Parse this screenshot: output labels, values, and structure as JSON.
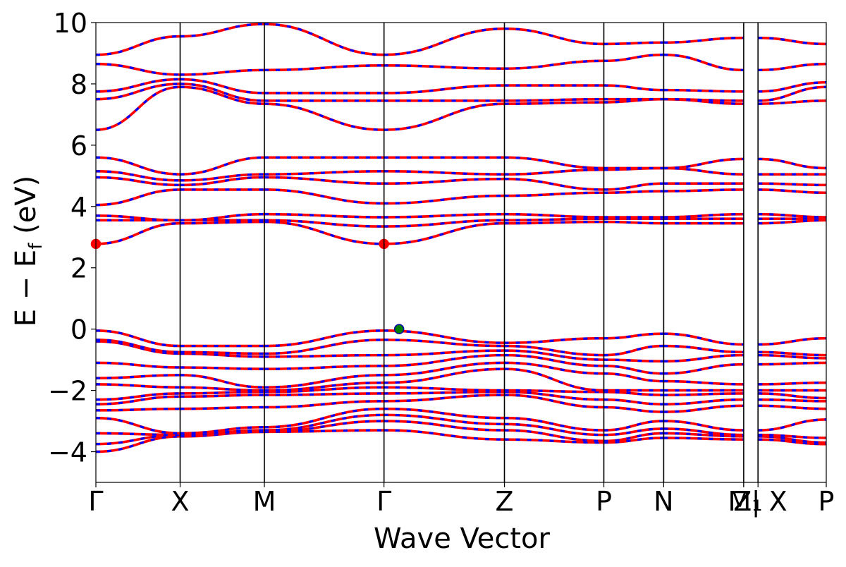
{
  "chart_data": {
    "type": "line",
    "title": "",
    "xlabel": "Wave Vector",
    "ylabel_main": "E − E",
    "ylabel_sub": "f",
    "ylabel_unit": " (eV)",
    "ylim": [
      -5,
      10
    ],
    "yticks": [
      10,
      8,
      6,
      4,
      2,
      0,
      -2,
      -4
    ],
    "ytick_labels": [
      "10",
      "8",
      "6",
      "4",
      "2",
      "0",
      "−2",
      "−4"
    ],
    "grid": false,
    "legend": "none",
    "colors": {
      "band_primary": "#ff0000",
      "band_secondary": "#0000ff",
      "cbm_marker": "#ff0000",
      "vbm_marker": "#008000",
      "axis": "#000000"
    },
    "kpoints": [
      {
        "label": "Γ",
        "x": 0.0
      },
      {
        "label": "X",
        "x": 1.0
      },
      {
        "label": "M",
        "x": 2.0
      },
      {
        "label": "Γ",
        "x": 3.42
      },
      {
        "label": "Z",
        "x": 4.85
      },
      {
        "label": "P",
        "x": 6.03
      },
      {
        "label": "N",
        "x": 6.74
      },
      {
        "label": "M",
        "x": 7.69
      },
      {
        "label": "Z₁",
        "x": 7.69
      },
      {
        "label": "| X",
        "x": 7.86
      },
      {
        "label": "P",
        "x": 8.67
      }
    ],
    "x_range": [
      0.0,
      8.67
    ],
    "markers": [
      {
        "name": "cbm",
        "x": 0.0,
        "y": 2.78,
        "color": "#ff0000"
      },
      {
        "name": "cbm",
        "x": 3.42,
        "y": 2.78,
        "color": "#ff0000"
      },
      {
        "name": "vbm",
        "x": 3.6,
        "y": 0.0,
        "color": "#008000"
      }
    ],
    "band_nodes": {
      "segments": [
        {
          "x0": 0.0,
          "x1": 1.0
        },
        {
          "x0": 1.0,
          "x1": 2.0
        },
        {
          "x0": 2.0,
          "x1": 3.42
        },
        {
          "x0": 3.42,
          "x1": 4.85
        },
        {
          "x0": 4.85,
          "x1": 6.03
        },
        {
          "x0": 6.03,
          "x1": 6.74
        },
        {
          "x0": 6.74,
          "x1": 7.69
        },
        {
          "x0": 7.86,
          "x1": 8.67
        }
      ],
      "bands": [
        [
          -4.0,
          -3.5,
          -3.35,
          -3.3,
          -3.6,
          -3.7,
          -3.55,
          -3.6,
          -3.75
        ],
        [
          -3.75,
          -3.45,
          -3.35,
          -3.0,
          -3.3,
          -3.65,
          -3.4,
          -3.5,
          -3.7
        ],
        [
          -3.4,
          -3.45,
          -3.3,
          -2.8,
          -3.1,
          -3.45,
          -3.25,
          -3.45,
          -3.55
        ],
        [
          -2.9,
          -3.4,
          -3.2,
          -2.6,
          -2.9,
          -3.3,
          -3.0,
          -3.3,
          -2.95
        ],
        [
          -2.65,
          -2.6,
          -2.55,
          -2.35,
          -2.15,
          -2.55,
          -2.7,
          -2.5,
          -2.6
        ],
        [
          -2.45,
          -2.2,
          -2.15,
          -2.1,
          -2.05,
          -2.3,
          -2.45,
          -2.3,
          -2.35
        ],
        [
          -2.3,
          -2.1,
          -2.05,
          -1.9,
          -2.0,
          -2.05,
          -2.15,
          -2.1,
          -2.25
        ],
        [
          -1.8,
          -1.9,
          -2.0,
          -1.75,
          -1.3,
          -2.0,
          -2.0,
          -2.0,
          -2.0
        ],
        [
          -1.6,
          -1.5,
          -1.9,
          -1.5,
          -1.1,
          -1.45,
          -1.7,
          -1.8,
          -1.75
        ],
        [
          -1.1,
          -1.25,
          -1.3,
          -1.2,
          -0.85,
          -1.2,
          -1.45,
          -1.15,
          -1.1
        ],
        [
          -0.4,
          -0.8,
          -0.9,
          -0.85,
          -0.7,
          -1.0,
          -1.05,
          -0.85,
          -0.95
        ],
        [
          -0.35,
          -0.75,
          -0.8,
          -0.35,
          -0.55,
          -0.85,
          -0.55,
          -0.75,
          -0.85
        ],
        [
          -0.05,
          -0.55,
          -0.55,
          -0.05,
          -0.45,
          -0.3,
          -0.15,
          -0.5,
          -0.3
        ],
        [
          2.78,
          3.45,
          3.5,
          2.78,
          3.45,
          3.5,
          3.45,
          3.45,
          3.55
        ],
        [
          3.55,
          3.55,
          3.55,
          3.35,
          3.55,
          3.6,
          3.6,
          3.6,
          3.6
        ],
        [
          3.7,
          3.55,
          3.75,
          3.65,
          3.75,
          3.65,
          3.65,
          3.75,
          3.65
        ],
        [
          4.05,
          4.55,
          4.55,
          4.1,
          4.35,
          4.45,
          4.5,
          4.55,
          4.45
        ],
        [
          4.95,
          4.7,
          4.95,
          4.75,
          4.9,
          4.55,
          4.75,
          4.75,
          4.7
        ],
        [
          5.15,
          4.85,
          5.05,
          5.15,
          5.05,
          5.2,
          5.25,
          5.05,
          5.05
        ],
        [
          5.6,
          5.05,
          5.6,
          5.6,
          5.6,
          5.25,
          5.25,
          5.55,
          5.25
        ],
        [
          6.5,
          7.9,
          7.35,
          6.5,
          7.35,
          7.4,
          7.5,
          7.35,
          7.45
        ],
        [
          7.5,
          8.0,
          7.45,
          7.45,
          7.45,
          7.5,
          7.5,
          7.45,
          7.9
        ],
        [
          7.75,
          8.15,
          7.7,
          7.7,
          7.95,
          7.95,
          7.8,
          7.75,
          8.05
        ],
        [
          8.65,
          8.3,
          8.45,
          8.6,
          8.5,
          8.75,
          8.95,
          8.45,
          8.65
        ],
        [
          8.95,
          9.55,
          9.95,
          8.95,
          9.8,
          9.3,
          9.35,
          9.5,
          9.3
        ]
      ]
    }
  }
}
